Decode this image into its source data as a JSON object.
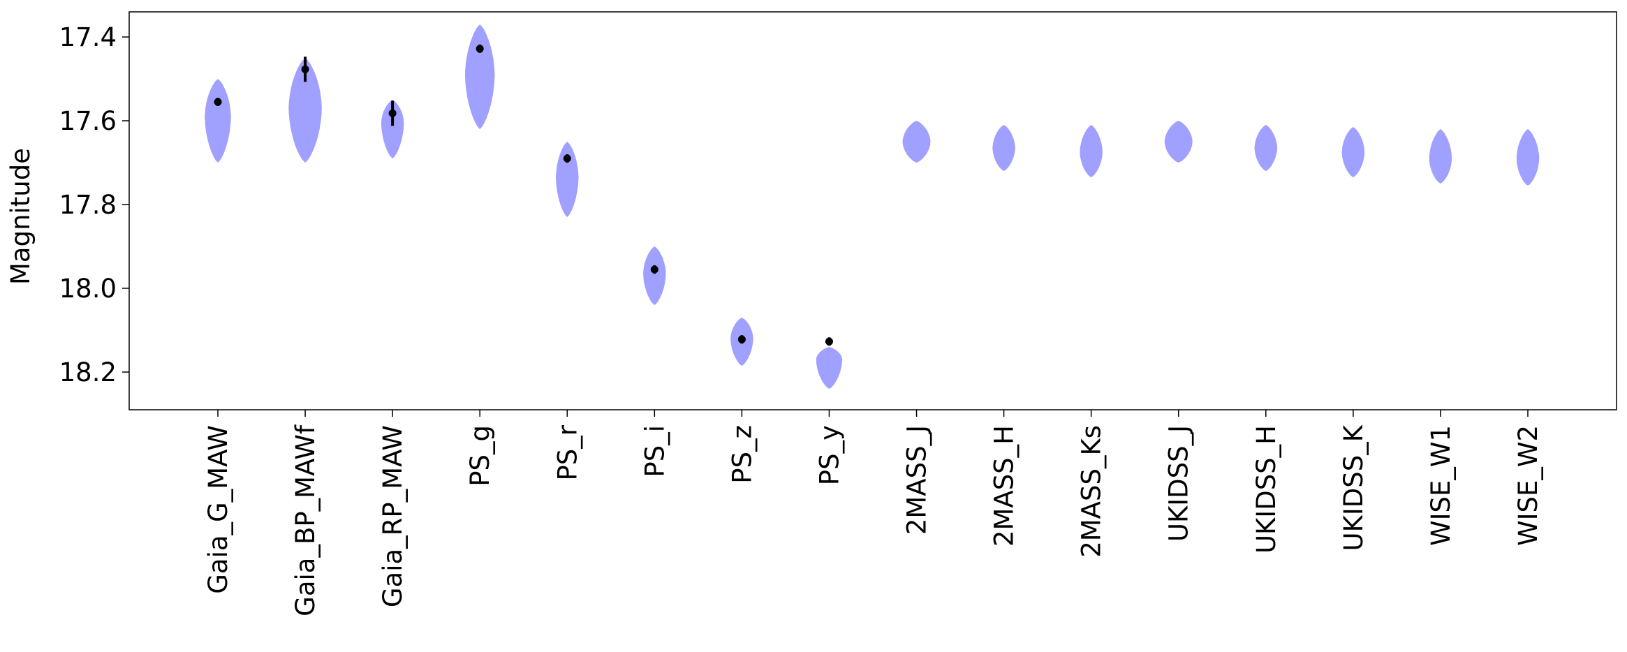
{
  "chart_data": {
    "type": "violin",
    "title": "",
    "xlabel": "",
    "ylabel": "Magnitude",
    "y_inverted": true,
    "ylim": [
      18.29,
      17.34
    ],
    "yticks": [
      "17.4",
      "17.6",
      "17.8",
      "18.0",
      "18.2"
    ],
    "ytick_values": [
      17.4,
      17.6,
      17.8,
      18.0,
      18.2
    ],
    "grid": false,
    "violin_color": "#9fa0ff",
    "point_color": "#000000",
    "categories": [
      "Gaia_G_MAW",
      "Gaia_BP_MAWf",
      "Gaia_RP_MAW",
      "PS_g",
      "PS_r",
      "PS_i",
      "PS_z",
      "PS_y",
      "2MASS_J",
      "2MASS_H",
      "2MASS_Ks",
      "UKIDSS_J",
      "UKIDSS_H",
      "UKIDSS_K",
      "WISE_W1",
      "WISE_W2"
    ],
    "violins": [
      {
        "center": 17.59,
        "min": 17.5,
        "max": 17.7,
        "width": 0.3
      },
      {
        "center": 17.57,
        "min": 17.45,
        "max": 17.7,
        "width": 0.38
      },
      {
        "center": 17.605,
        "min": 17.55,
        "max": 17.69,
        "width": 0.26
      },
      {
        "center": 17.49,
        "min": 17.37,
        "max": 17.62,
        "width": 0.34
      },
      {
        "center": 17.735,
        "min": 17.65,
        "max": 17.83,
        "width": 0.26
      },
      {
        "center": 17.965,
        "min": 17.9,
        "max": 18.04,
        "width": 0.26
      },
      {
        "center": 18.12,
        "min": 18.07,
        "max": 18.185,
        "width": 0.26
      },
      {
        "center": 18.17,
        "min": 18.14,
        "max": 18.24,
        "width": 0.3
      },
      {
        "center": 17.65,
        "min": 17.6,
        "max": 17.7,
        "width": 0.32
      },
      {
        "center": 17.665,
        "min": 17.61,
        "max": 17.72,
        "width": 0.26
      },
      {
        "center": 17.675,
        "min": 17.61,
        "max": 17.735,
        "width": 0.26
      },
      {
        "center": 17.65,
        "min": 17.6,
        "max": 17.7,
        "width": 0.32
      },
      {
        "center": 17.665,
        "min": 17.61,
        "max": 17.72,
        "width": 0.26
      },
      {
        "center": 17.675,
        "min": 17.615,
        "max": 17.735,
        "width": 0.26
      },
      {
        "center": 17.69,
        "min": 17.62,
        "max": 17.75,
        "width": 0.26
      },
      {
        "center": 17.69,
        "min": 17.62,
        "max": 17.755,
        "width": 0.26
      }
    ],
    "observed": [
      {
        "value": 17.555,
        "err": 0.01
      },
      {
        "value": 17.477,
        "err": 0.03
      },
      {
        "value": 17.582,
        "err": 0.03
      },
      {
        "value": 17.428,
        "err": 0.01
      },
      {
        "value": 17.69,
        "err": 0.01
      },
      {
        "value": 17.955,
        "err": 0.01
      },
      {
        "value": 18.122,
        "err": 0.01
      },
      {
        "value": 18.127,
        "err": 0.01
      },
      null,
      null,
      null,
      null,
      null,
      null,
      null,
      null
    ]
  }
}
